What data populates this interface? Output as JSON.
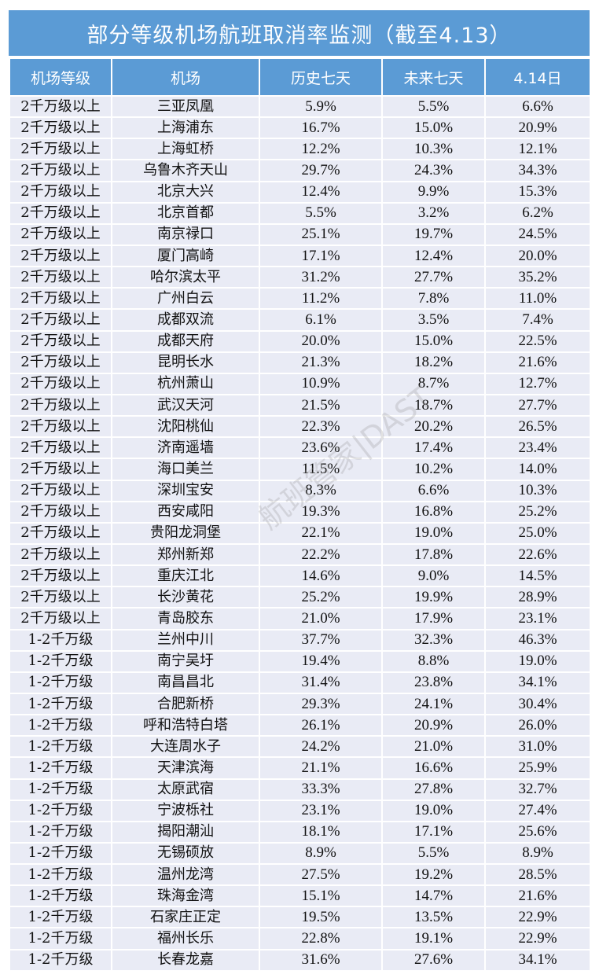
{
  "title": "部分等级机场航班取消率监测（截至4.13）",
  "headers": [
    "机场等级",
    "机场",
    "历史七天",
    "未来七天",
    "4.14日"
  ],
  "watermark": "航班管家|DAST",
  "colors": {
    "header_bg": "#5b9bd5",
    "row_bg": "#e9ebf5"
  },
  "rows": [
    [
      "2千万级以上",
      "三亚凤凰",
      "5.9%",
      "5.5%",
      "6.6%"
    ],
    [
      "2千万级以上",
      "上海浦东",
      "16.7%",
      "15.0%",
      "20.9%"
    ],
    [
      "2千万级以上",
      "上海虹桥",
      "12.2%",
      "10.3%",
      "12.1%"
    ],
    [
      "2千万级以上",
      "乌鲁木齐天山",
      "29.7%",
      "24.3%",
      "34.3%"
    ],
    [
      "2千万级以上",
      "北京大兴",
      "12.4%",
      "9.9%",
      "15.3%"
    ],
    [
      "2千万级以上",
      "北京首都",
      "5.5%",
      "3.2%",
      "6.2%"
    ],
    [
      "2千万级以上",
      "南京禄口",
      "25.1%",
      "19.7%",
      "24.5%"
    ],
    [
      "2千万级以上",
      "厦门高崎",
      "17.1%",
      "12.4%",
      "20.0%"
    ],
    [
      "2千万级以上",
      "哈尔滨太平",
      "31.2%",
      "27.7%",
      "35.2%"
    ],
    [
      "2千万级以上",
      "广州白云",
      "11.2%",
      "7.8%",
      "11.0%"
    ],
    [
      "2千万级以上",
      "成都双流",
      "6.1%",
      "3.5%",
      "7.4%"
    ],
    [
      "2千万级以上",
      "成都天府",
      "20.0%",
      "15.0%",
      "22.5%"
    ],
    [
      "2千万级以上",
      "昆明长水",
      "21.3%",
      "18.2%",
      "21.6%"
    ],
    [
      "2千万级以上",
      "杭州萧山",
      "10.9%",
      "8.7%",
      "12.7%"
    ],
    [
      "2千万级以上",
      "武汉天河",
      "21.5%",
      "18.7%",
      "27.7%"
    ],
    [
      "2千万级以上",
      "沈阳桃仙",
      "22.3%",
      "20.2%",
      "26.5%"
    ],
    [
      "2千万级以上",
      "济南遥墙",
      "23.6%",
      "17.4%",
      "23.4%"
    ],
    [
      "2千万级以上",
      "海口美兰",
      "11.5%",
      "10.2%",
      "14.0%"
    ],
    [
      "2千万级以上",
      "深圳宝安",
      "8.3%",
      "6.6%",
      "10.3%"
    ],
    [
      "2千万级以上",
      "西安咸阳",
      "19.3%",
      "16.8%",
      "25.2%"
    ],
    [
      "2千万级以上",
      "贵阳龙洞堡",
      "22.1%",
      "19.0%",
      "25.0%"
    ],
    [
      "2千万级以上",
      "郑州新郑",
      "22.2%",
      "17.8%",
      "22.6%"
    ],
    [
      "2千万级以上",
      "重庆江北",
      "14.6%",
      "9.0%",
      "14.5%"
    ],
    [
      "2千万级以上",
      "长沙黄花",
      "25.2%",
      "19.9%",
      "28.9%"
    ],
    [
      "2千万级以上",
      "青岛胶东",
      "21.0%",
      "17.9%",
      "23.1%"
    ],
    [
      "1-2千万级",
      "兰州中川",
      "37.7%",
      "32.3%",
      "46.3%"
    ],
    [
      "1-2千万级",
      "南宁吴圩",
      "19.4%",
      "8.8%",
      "19.0%"
    ],
    [
      "1-2千万级",
      "南昌昌北",
      "31.4%",
      "23.8%",
      "34.1%"
    ],
    [
      "1-2千万级",
      "合肥新桥",
      "29.3%",
      "24.1%",
      "30.4%"
    ],
    [
      "1-2千万级",
      "呼和浩特白塔",
      "26.1%",
      "20.9%",
      "26.0%"
    ],
    [
      "1-2千万级",
      "大连周水子",
      "24.2%",
      "21.0%",
      "31.0%"
    ],
    [
      "1-2千万级",
      "天津滨海",
      "21.1%",
      "16.6%",
      "25.9%"
    ],
    [
      "1-2千万级",
      "太原武宿",
      "33.3%",
      "27.8%",
      "32.7%"
    ],
    [
      "1-2千万级",
      "宁波栎社",
      "23.1%",
      "19.0%",
      "27.4%"
    ],
    [
      "1-2千万级",
      "揭阳潮汕",
      "18.1%",
      "17.1%",
      "25.6%"
    ],
    [
      "1-2千万级",
      "无锡硕放",
      "8.9%",
      "5.5%",
      "8.9%"
    ],
    [
      "1-2千万级",
      "温州龙湾",
      "27.5%",
      "19.2%",
      "28.5%"
    ],
    [
      "1-2千万级",
      "珠海金湾",
      "15.1%",
      "14.7%",
      "21.6%"
    ],
    [
      "1-2千万级",
      "石家庄正定",
      "19.5%",
      "13.5%",
      "22.9%"
    ],
    [
      "1-2千万级",
      "福州长乐",
      "22.8%",
      "19.1%",
      "22.9%"
    ],
    [
      "1-2千万级",
      "长春龙嘉",
      "31.6%",
      "27.6%",
      "34.1%"
    ]
  ]
}
